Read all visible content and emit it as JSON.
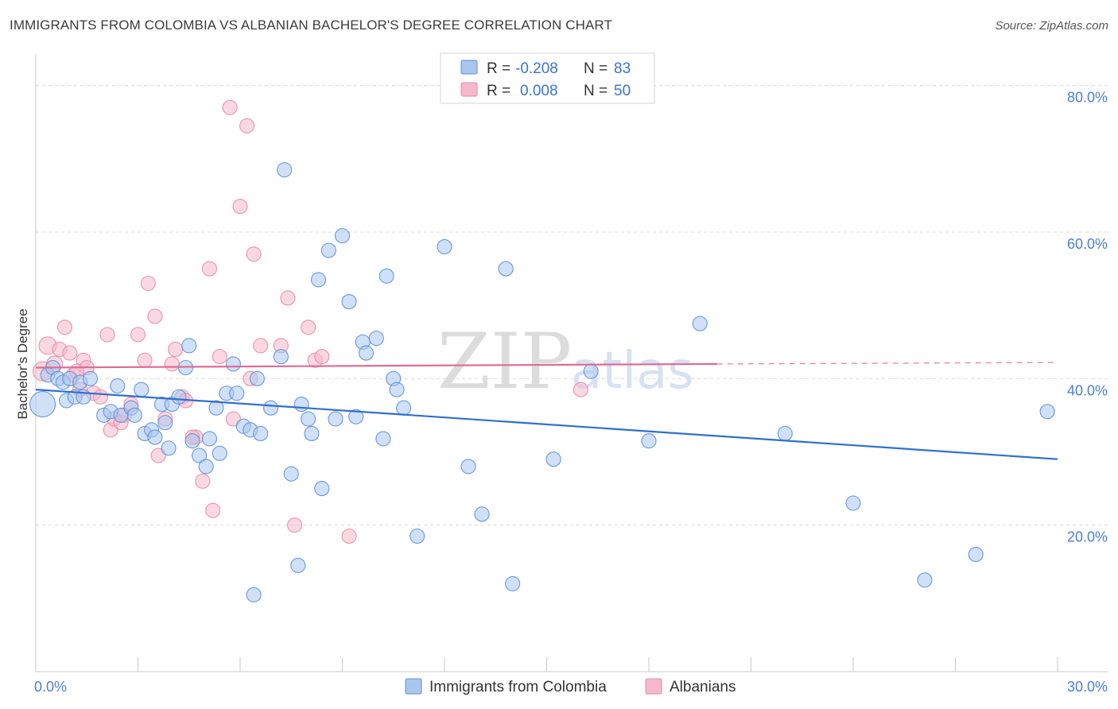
{
  "title": "IMMIGRANTS FROM COLOMBIA VS ALBANIAN BACHELOR'S DEGREE CORRELATION CHART",
  "source": "Source: ZipAtlas.com",
  "colors": {
    "blue_fill": "#a9c6ef",
    "blue_stroke": "#5b8fd8",
    "blue_line": "#2f6fd0",
    "pink_fill": "#f6b8cb",
    "pink_stroke": "#e88aa7",
    "pink_line": "#e06b94",
    "grid": "#d9d9d9",
    "axis_label": "#4a7fd0"
  },
  "legend": {
    "rows": [
      {
        "r_label": "R =",
        "r_value": "-0.208",
        "n_label": "N =",
        "n_value": "83"
      },
      {
        "r_label": "R =",
        "r_value": "0.008",
        "n_label": "N =",
        "n_value": "50"
      }
    ]
  },
  "watermark": {
    "zip": "ZIP",
    "atlas": "atlas"
  },
  "chart_data": {
    "type": "scatter",
    "title": "IMMIGRANTS FROM COLOMBIA VS ALBANIAN BACHELOR'S DEGREE CORRELATION CHART",
    "xlabel": "",
    "ylabel": "Bachelor's Degree",
    "xlim": [
      0,
      30
    ],
    "ylim": [
      0,
      83
    ],
    "x_tick_labels": [
      "0.0%",
      "30.0%"
    ],
    "y_ticks": [
      20,
      40,
      60,
      80
    ],
    "y_tick_labels": [
      "20.0%",
      "40.0%",
      "60.0%",
      "80.0%"
    ],
    "grid": true,
    "series": [
      {
        "name": "Immigrants from Colombia",
        "color": "blue",
        "trend": {
          "x": [
            0,
            30
          ],
          "y": [
            38.5,
            29.0
          ],
          "dashed_from": null
        },
        "points": [
          [
            0.2,
            36.5,
            16
          ],
          [
            0.35,
            40.5,
            9
          ],
          [
            0.5,
            41.5,
            9
          ],
          [
            0.65,
            40.0,
            9
          ],
          [
            0.8,
            39.5,
            9
          ],
          [
            0.9,
            37.0,
            9
          ],
          [
            1.0,
            40.0,
            9
          ],
          [
            1.15,
            37.5,
            9
          ],
          [
            1.3,
            39.5,
            9
          ],
          [
            1.4,
            37.5,
            9
          ],
          [
            1.6,
            40.0,
            9
          ],
          [
            2.0,
            35.0,
            9
          ],
          [
            2.2,
            35.5,
            9
          ],
          [
            2.4,
            39.0,
            9
          ],
          [
            2.5,
            35.0,
            9
          ],
          [
            2.8,
            36.0,
            9
          ],
          [
            2.9,
            35.0,
            9
          ],
          [
            3.1,
            38.5,
            9
          ],
          [
            3.2,
            32.5,
            9
          ],
          [
            3.4,
            33.0,
            9
          ],
          [
            3.5,
            32.0,
            9
          ],
          [
            3.7,
            36.5,
            9
          ],
          [
            3.8,
            34.0,
            9
          ],
          [
            3.9,
            30.5,
            9
          ],
          [
            4.0,
            36.5,
            9
          ],
          [
            4.2,
            37.5,
            9
          ],
          [
            4.4,
            41.5,
            9
          ],
          [
            4.5,
            44.5,
            9
          ],
          [
            4.6,
            31.5,
            9
          ],
          [
            4.8,
            29.5,
            9
          ],
          [
            5.0,
            28.0,
            9
          ],
          [
            5.1,
            31.8,
            9
          ],
          [
            5.3,
            36.0,
            9
          ],
          [
            5.4,
            29.8,
            9
          ],
          [
            5.6,
            38.0,
            9
          ],
          [
            5.8,
            42.0,
            9
          ],
          [
            5.9,
            38.0,
            9
          ],
          [
            6.1,
            33.5,
            9
          ],
          [
            6.3,
            33.0,
            9
          ],
          [
            6.4,
            10.5,
            9
          ],
          [
            6.5,
            40.0,
            9
          ],
          [
            6.6,
            32.5,
            9
          ],
          [
            6.9,
            36.0,
            9
          ],
          [
            7.2,
            43.0,
            9
          ],
          [
            7.3,
            68.5,
            9
          ],
          [
            7.5,
            27.0,
            9
          ],
          [
            7.7,
            14.5,
            9
          ],
          [
            7.8,
            36.5,
            9
          ],
          [
            8.0,
            34.5,
            9
          ],
          [
            8.1,
            32.5,
            9
          ],
          [
            8.3,
            53.5,
            9
          ],
          [
            8.4,
            25.0,
            9
          ],
          [
            8.6,
            57.5,
            9
          ],
          [
            8.8,
            34.5,
            9
          ],
          [
            9.0,
            59.5,
            9
          ],
          [
            9.2,
            50.5,
            9
          ],
          [
            9.4,
            34.8,
            9
          ],
          [
            9.6,
            45.0,
            9
          ],
          [
            9.7,
            43.5,
            9
          ],
          [
            10.0,
            45.5,
            9
          ],
          [
            10.2,
            31.8,
            9
          ],
          [
            10.3,
            54.0,
            9
          ],
          [
            10.5,
            40.0,
            9
          ],
          [
            10.6,
            38.5,
            9
          ],
          [
            10.8,
            36.0,
            9
          ],
          [
            11.2,
            18.5,
            9
          ],
          [
            12.0,
            58.0,
            9
          ],
          [
            12.7,
            28.0,
            9
          ],
          [
            13.1,
            21.5,
            9
          ],
          [
            13.8,
            55.0,
            9
          ],
          [
            14.0,
            12.0,
            9
          ],
          [
            15.2,
            29.0,
            9
          ],
          [
            16.3,
            41.0,
            9
          ],
          [
            18.0,
            31.5,
            9
          ],
          [
            19.5,
            47.5,
            9
          ],
          [
            22.0,
            32.5,
            9
          ],
          [
            24.0,
            23.0,
            9
          ],
          [
            26.1,
            12.5,
            9
          ],
          [
            27.6,
            16.0,
            9
          ],
          [
            29.7,
            35.5,
            9
          ]
        ]
      },
      {
        "name": "Albanians",
        "color": "pink",
        "trend": {
          "x": [
            0,
            20.0
          ],
          "y": [
            41.5,
            42.0
          ],
          "dashed_from": 20.0,
          "dashed_to": [
            30,
            42.2
          ]
        },
        "points": [
          [
            0.2,
            41.0,
            12
          ],
          [
            0.35,
            44.5,
            11
          ],
          [
            0.55,
            42.0,
            10
          ],
          [
            0.7,
            44.0,
            9
          ],
          [
            0.85,
            47.0,
            9
          ],
          [
            1.0,
            43.5,
            9
          ],
          [
            1.1,
            40.5,
            9
          ],
          [
            1.3,
            38.5,
            9
          ],
          [
            1.4,
            42.5,
            9
          ],
          [
            1.5,
            41.5,
            9
          ],
          [
            1.7,
            38.0,
            9
          ],
          [
            1.9,
            37.5,
            9
          ],
          [
            2.1,
            46.0,
            9
          ],
          [
            2.2,
            33.0,
            9
          ],
          [
            2.3,
            34.5,
            9
          ],
          [
            2.6,
            35.0,
            9
          ],
          [
            2.8,
            36.5,
            9
          ],
          [
            3.0,
            46.0,
            9
          ],
          [
            3.2,
            42.5,
            9
          ],
          [
            3.3,
            53.0,
            9
          ],
          [
            3.5,
            48.5,
            9
          ],
          [
            3.6,
            29.5,
            9
          ],
          [
            3.8,
            34.5,
            9
          ],
          [
            4.0,
            42.0,
            9
          ],
          [
            4.1,
            44.0,
            9
          ],
          [
            4.3,
            37.5,
            9
          ],
          [
            4.4,
            37.0,
            9
          ],
          [
            4.7,
            32.0,
            9
          ],
          [
            4.9,
            26.0,
            9
          ],
          [
            5.1,
            55.0,
            9
          ],
          [
            5.2,
            22.0,
            9
          ],
          [
            5.4,
            43.0,
            9
          ],
          [
            5.7,
            77.0,
            9
          ],
          [
            5.8,
            34.5,
            9
          ],
          [
            6.0,
            63.5,
            9
          ],
          [
            6.2,
            74.5,
            9
          ],
          [
            6.3,
            40.0,
            9
          ],
          [
            6.4,
            57.0,
            9
          ],
          [
            6.6,
            44.5,
            9
          ],
          [
            7.2,
            44.5,
            9
          ],
          [
            7.4,
            51.0,
            9
          ],
          [
            7.6,
            20.0,
            9
          ],
          [
            8.0,
            47.0,
            9
          ],
          [
            8.2,
            42.5,
            9
          ],
          [
            8.4,
            43.0,
            9
          ],
          [
            9.2,
            18.5,
            9
          ],
          [
            16.0,
            38.5,
            9
          ],
          [
            4.6,
            32.0,
            9
          ],
          [
            2.5,
            34.0,
            9
          ],
          [
            1.2,
            41.0,
            9
          ]
        ]
      }
    ],
    "legend_position": "top-center"
  },
  "bottom_legend": {
    "items": [
      {
        "label": "Immigrants from Colombia"
      },
      {
        "label": "Albanians"
      }
    ]
  }
}
